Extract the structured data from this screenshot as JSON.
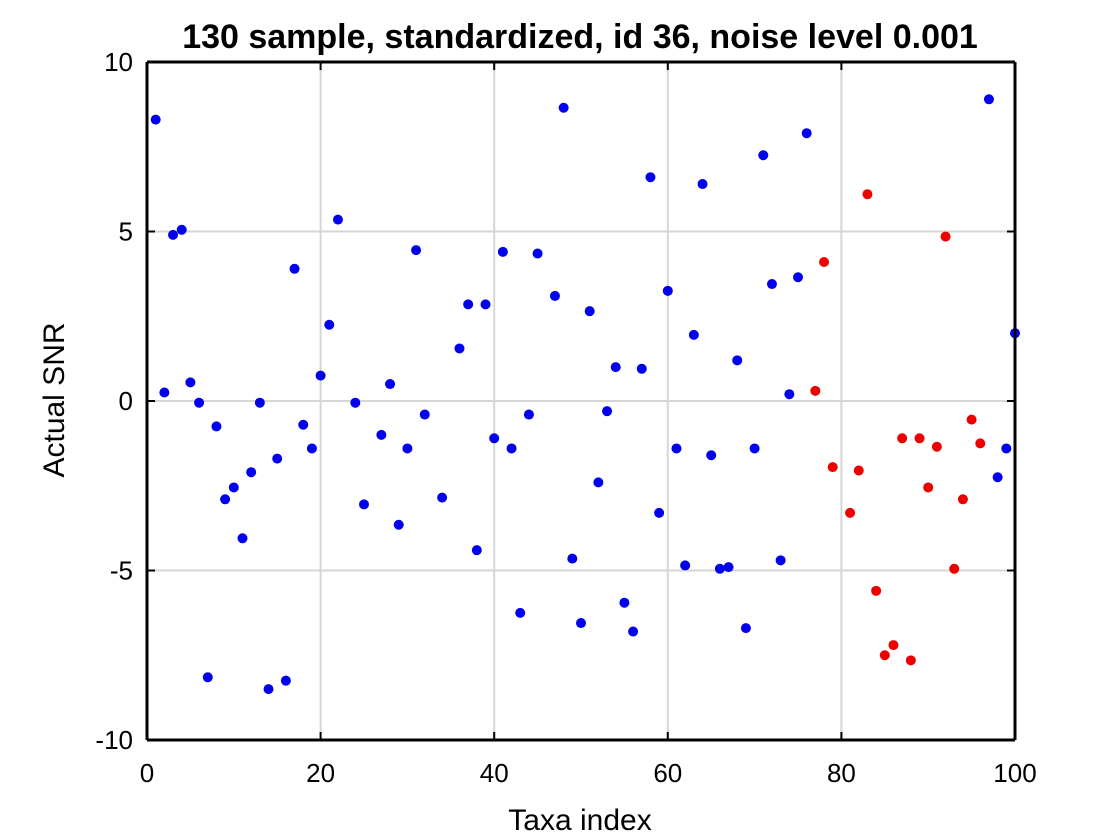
{
  "chart_data": {
    "type": "scatter",
    "title": "130 sample, standardized, id 36, noise level 0.001",
    "xlabel": "Taxa index",
    "ylabel": "Actual SNR",
    "xlim": [
      0,
      100
    ],
    "ylim": [
      -10,
      10
    ],
    "xticks": [
      "0",
      "20",
      "40",
      "60",
      "80",
      "100"
    ],
    "yticks": [
      "10",
      "5",
      "0",
      "-5",
      "-10"
    ],
    "grid": true,
    "legend": "none",
    "series": [
      {
        "color": "#0000ee",
        "points": [
          [
            1,
            8.3
          ],
          [
            2,
            0.25
          ],
          [
            3,
            4.9
          ],
          [
            4,
            5.05
          ],
          [
            5,
            0.55
          ],
          [
            6,
            -0.05
          ],
          [
            7,
            -8.15
          ],
          [
            8,
            -0.75
          ],
          [
            9,
            -2.9
          ],
          [
            10,
            -2.55
          ],
          [
            11,
            -4.05
          ],
          [
            12,
            -2.1
          ],
          [
            13,
            -0.05
          ],
          [
            14,
            -8.5
          ],
          [
            15,
            -1.7
          ],
          [
            16,
            -8.25
          ],
          [
            17,
            3.9
          ],
          [
            18,
            -0.7
          ],
          [
            19,
            -1.4
          ],
          [
            20,
            0.75
          ],
          [
            21,
            2.25
          ],
          [
            22,
            5.35
          ],
          [
            24,
            -0.05
          ],
          [
            25,
            -3.05
          ],
          [
            27,
            -1.0
          ],
          [
            28,
            0.5
          ],
          [
            29,
            -3.65
          ],
          [
            30,
            -1.4
          ],
          [
            31,
            4.45
          ],
          [
            32,
            -0.4
          ],
          [
            34,
            -2.85
          ],
          [
            36,
            1.55
          ],
          [
            37,
            2.85
          ],
          [
            38,
            -4.4
          ],
          [
            39,
            2.85
          ],
          [
            40,
            -1.1
          ],
          [
            41,
            4.4
          ],
          [
            42,
            -1.4
          ],
          [
            43,
            -6.25
          ],
          [
            44,
            -0.4
          ],
          [
            45,
            4.35
          ],
          [
            47,
            3.1
          ],
          [
            48,
            8.65
          ],
          [
            49,
            -4.65
          ],
          [
            50,
            -6.55
          ],
          [
            51,
            2.65
          ],
          [
            52,
            -2.4
          ],
          [
            53,
            -0.3
          ],
          [
            54,
            1.0
          ],
          [
            55,
            -5.95
          ],
          [
            56,
            -6.8
          ],
          [
            57,
            0.95
          ],
          [
            58,
            6.6
          ],
          [
            59,
            -3.3
          ],
          [
            60,
            3.25
          ],
          [
            61,
            -1.4
          ],
          [
            62,
            -4.85
          ],
          [
            63,
            1.95
          ],
          [
            64,
            6.4
          ],
          [
            65,
            -1.6
          ],
          [
            66,
            -4.95
          ],
          [
            67,
            -4.9
          ],
          [
            68,
            1.2
          ],
          [
            69,
            -6.7
          ],
          [
            70,
            -1.4
          ],
          [
            71,
            7.25
          ],
          [
            72,
            3.45
          ],
          [
            73,
            -4.7
          ],
          [
            74,
            0.2
          ],
          [
            75,
            3.65
          ],
          [
            76,
            7.9
          ],
          [
            97,
            8.9
          ],
          [
            98,
            -2.25
          ],
          [
            99,
            -1.4
          ],
          [
            100,
            2.0
          ]
        ]
      },
      {
        "color": "#ee0000",
        "points": [
          [
            77,
            0.3
          ],
          [
            78,
            4.1
          ],
          [
            79,
            -1.95
          ],
          [
            81,
            -3.3
          ],
          [
            82,
            -2.05
          ],
          [
            83,
            6.1
          ],
          [
            84,
            -5.6
          ],
          [
            85,
            -7.5
          ],
          [
            86,
            -7.2
          ],
          [
            87,
            -1.1
          ],
          [
            88,
            -7.65
          ],
          [
            89,
            -1.1
          ],
          [
            90,
            -2.55
          ],
          [
            91,
            -1.35
          ],
          [
            92,
            4.85
          ],
          [
            93,
            -4.95
          ],
          [
            94,
            -2.9
          ],
          [
            95,
            -0.55
          ],
          [
            96,
            -1.25
          ]
        ]
      }
    ]
  }
}
